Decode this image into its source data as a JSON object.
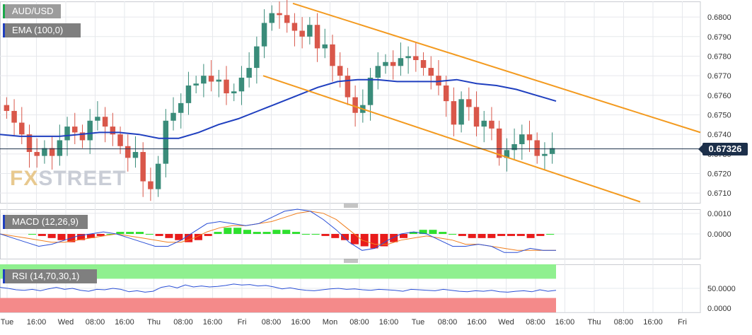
{
  "pair": "AUD/USD",
  "ema_label": "EMA (100,0)",
  "macd_label": "MACD (12,26,9)",
  "rsi_label": "RSI (14,70,30,1)",
  "current_price": "0.67326",
  "watermark": {
    "a": "FX",
    "b": "STREET"
  },
  "colors": {
    "up": "#3a8c7a",
    "down": "#d9574a",
    "ema": "#1f3fbf",
    "channel": "#f39a1f",
    "macd_pos": "#2ee02e",
    "macd_neg": "#e81b1b",
    "macd_line": "#2a4fd6",
    "signal_line": "#f07f1f",
    "rsi_line": "#2a4fd6",
    "rsi_over": "#8ff08f",
    "rsi_under": "#f48a8a"
  },
  "x_labels": [
    "Tue",
    "16:00",
    "Wed",
    "08:00",
    "16:00",
    "Thu",
    "08:00",
    "16:00",
    "Fri",
    "08:00",
    "16:00",
    "Mon",
    "08:00",
    "16:00",
    "Tue",
    "08:00",
    "16:00",
    "Wed",
    "08:00",
    "16:00",
    "Thu",
    "08:00",
    "16:00",
    "Fri"
  ],
  "chart_data": [
    {
      "type": "candlestick",
      "title": "AUD/USD",
      "ylim": [
        0.6705,
        0.6808
      ],
      "y_ticks": [
        "0.6710",
        "0.6720",
        "0.6730",
        "0.6740",
        "0.6750",
        "0.6760",
        "0.6770",
        "0.6780",
        "0.6790",
        "0.6800"
      ],
      "close_series": [
        0.6752,
        0.6746,
        0.674,
        0.6731,
        0.6729,
        0.6733,
        0.6729,
        0.6737,
        0.6744,
        0.6741,
        0.6737,
        0.6747,
        0.6749,
        0.6744,
        0.674,
        0.6734,
        0.6728,
        0.6731,
        0.6716,
        0.6712,
        0.6725,
        0.6747,
        0.6751,
        0.6756,
        0.6765,
        0.6766,
        0.677,
        0.6767,
        0.6768,
        0.6761,
        0.6762,
        0.6769,
        0.6774,
        0.6785,
        0.6797,
        0.6802,
        0.6801,
        0.6797,
        0.6793,
        0.679,
        0.6796,
        0.6784,
        0.6786,
        0.6775,
        0.677,
        0.6759,
        0.6751,
        0.6755,
        0.6769,
        0.6775,
        0.6777,
        0.6775,
        0.6779,
        0.678,
        0.6778,
        0.6774,
        0.677,
        0.6765,
        0.6757,
        0.6745,
        0.6758,
        0.6754,
        0.6744,
        0.6747,
        0.6743,
        0.6728,
        0.6732,
        0.6735,
        0.674,
        0.6737,
        0.6729,
        0.673,
        0.6733
      ],
      "ema": {
        "name": "EMA (100,0)",
        "values": [
          0.674,
          0.6739,
          0.6739,
          0.6739,
          0.674,
          0.6741,
          0.6741,
          0.674,
          0.6738,
          0.6738,
          0.6741,
          0.6745,
          0.6748,
          0.6752,
          0.6756,
          0.676,
          0.6764,
          0.6767,
          0.6768,
          0.6768,
          0.6767,
          0.6767,
          0.6767,
          0.6768,
          0.6766,
          0.6765,
          0.6763,
          0.676,
          0.6757
        ]
      },
      "channel": {
        "upper": [
          [
            0.6807,
            "Fri 16:00"
          ],
          [
            0.674,
            "Fri+7"
          ]
        ],
        "lower": [
          [
            0.677,
            "Fri 05:00"
          ],
          [
            0.6705,
            "Thu 16:00"
          ]
        ]
      },
      "current_price": 0.67326
    },
    {
      "type": "bar",
      "title": "MACD (12,26,9)",
      "ylim": [
        -0.0012,
        0.0012
      ],
      "y_ticks": [
        "0.0010",
        "0.0000"
      ],
      "histogram": [
        0.0,
        -0.0001,
        -0.0002,
        -0.0003,
        -0.0004,
        -0.0003,
        -0.0002,
        -0.0001,
        0.0,
        0.0001,
        0.0001,
        0.0001,
        0.0,
        -0.0001,
        -0.0002,
        -0.0003,
        -0.0004,
        -0.0003,
        -0.0001,
        0.0001,
        0.0003,
        0.0003,
        0.0002,
        0.0001,
        0.0001,
        0.0002,
        0.0002,
        0.0001,
        0.0,
        0.0,
        -0.0001,
        -0.0002,
        -0.0003,
        -0.0005,
        -0.0006,
        -0.0007,
        -0.0006,
        -0.0004,
        -0.0002,
        0.0001,
        0.0002,
        0.0002,
        0.0001,
        0.0,
        -0.0001,
        -0.0002,
        -0.0002,
        -0.0002,
        -0.0001,
        -0.0001,
        -0.0001,
        -0.0002,
        -0.0001,
        0.0
      ],
      "macd": [
        0.0,
        -0.0002,
        -0.0004,
        -0.0006,
        -0.0005,
        -0.0003,
        -0.0001,
        0.0,
        0.0001,
        0.0,
        -0.0002,
        -0.0004,
        -0.0006,
        -0.0006,
        -0.0003,
        0.0001,
        0.0005,
        0.0006,
        0.0005,
        0.0004,
        0.0005,
        0.0008,
        0.0011,
        0.0012,
        0.0011,
        0.0007,
        0.0002,
        -0.0004,
        -0.0008,
        -0.0007,
        -0.0003,
        0.0,
        0.0001,
        0.0,
        -0.0003,
        -0.0006,
        -0.0006,
        -0.0005,
        -0.0006,
        -0.0009,
        -0.0009,
        -0.0007,
        -0.0008,
        -0.0008
      ],
      "signal": [
        0.0,
        -0.0001,
        -0.0002,
        -0.0003,
        -0.0004,
        -0.0004,
        -0.0003,
        -0.0002,
        -0.0001,
        0.0,
        -0.0001,
        -0.0002,
        -0.0003,
        -0.0004,
        -0.0004,
        -0.0002,
        0.0001,
        0.0003,
        0.0004,
        0.0004,
        0.0005,
        0.0006,
        0.0008,
        0.001,
        0.0011,
        0.001,
        0.0007,
        0.0002,
        -0.0003,
        -0.0005,
        -0.0005,
        -0.0003,
        -0.0002,
        -0.0001,
        -0.0002,
        -0.0003,
        -0.0005,
        -0.0005,
        -0.0006,
        -0.0007,
        -0.0008,
        -0.0008,
        -0.0008,
        -0.0008
      ]
    },
    {
      "type": "line",
      "title": "RSI (14,70,30,1)",
      "ylim": [
        0,
        100
      ],
      "y_ticks": [
        "50.0000",
        "0.0000"
      ],
      "overbought": 70,
      "oversold": 30,
      "values": [
        52,
        50,
        47,
        46,
        48,
        45,
        49,
        52,
        48,
        50,
        46,
        44,
        48,
        47,
        50,
        48,
        43,
        45,
        42,
        44,
        52,
        55,
        51,
        57,
        53,
        55,
        53,
        54,
        56,
        59,
        57,
        58,
        55,
        56,
        53,
        49,
        51,
        48,
        46,
        45,
        47,
        49,
        50,
        48,
        49,
        47,
        46,
        48,
        47,
        46,
        44,
        48,
        47,
        46,
        45,
        48,
        46,
        44,
        43,
        45,
        44,
        46,
        43,
        42,
        44,
        45,
        43,
        47,
        44,
        46
      ]
    }
  ]
}
